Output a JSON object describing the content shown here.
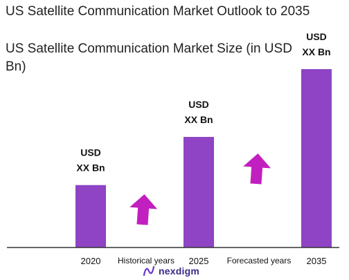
{
  "chart_data": {
    "type": "bar",
    "title": "US Satellite Communication Market Outlook to 2035",
    "subtitle": "US Satellite Communication Market Size (in USD Bn)",
    "categories": [
      "2020",
      "2025",
      "2035"
    ],
    "values": [
      35,
      62,
      100
    ],
    "value_labels": [
      [
        "USD",
        "XX Bn"
      ],
      [
        "USD",
        "XX Bn"
      ],
      [
        "USD",
        "XX Bn"
      ]
    ],
    "period_labels": [
      "Historical years",
      "Forecasted years"
    ],
    "ylim": [
      0,
      100
    ],
    "grid": false,
    "bar_color": "#8e44c4",
    "arrow_color": "#c21fc0"
  },
  "brand": {
    "name": "nexdigm",
    "logo_icon": "nexdigm-logo-icon"
  }
}
